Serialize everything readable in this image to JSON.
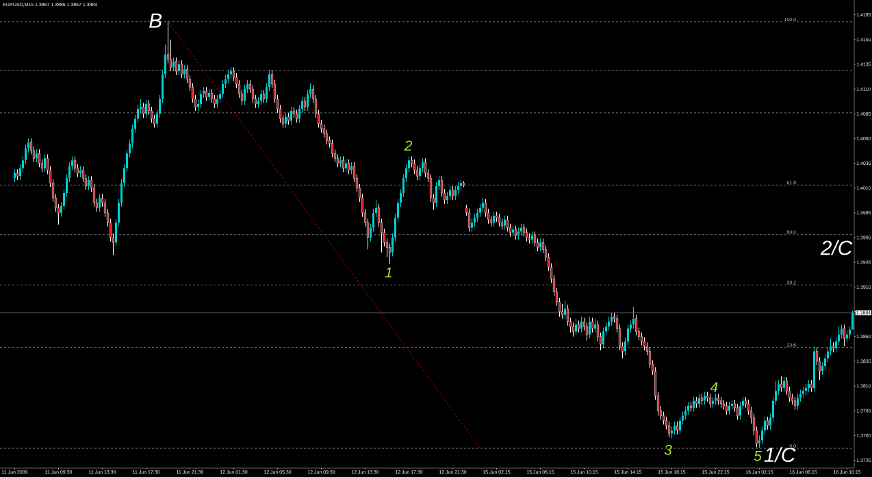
{
  "chart_data": {
    "type": "candlestick",
    "title": "EURUSD,M15  1.3867 1.3886 1.3867 1.3884",
    "categories": [
      "11 Jun 2009",
      null,
      null,
      null,
      null,
      null,
      null,
      null,
      null,
      null,
      null,
      null,
      null,
      null,
      null,
      null,
      "11 Jun 09:30",
      null,
      null,
      null,
      null,
      null,
      null,
      null,
      null,
      null,
      null,
      null,
      null,
      null,
      null,
      null,
      "11 Jun 13:30",
      null,
      null,
      null,
      null,
      null,
      null,
      null,
      null,
      null,
      null,
      null,
      null,
      null,
      null,
      null,
      "11 Jun 17:30",
      null,
      null,
      null,
      null,
      null,
      null,
      null,
      null,
      null,
      null,
      null,
      null,
      null,
      null,
      null,
      "11 Jun 21:30",
      null,
      null,
      null,
      null,
      null,
      null,
      null,
      null,
      null,
      null,
      null,
      null,
      null,
      null,
      null,
      "12 Jun 01:30",
      null,
      null,
      null,
      null,
      null,
      null,
      null,
      null,
      null,
      null,
      null,
      null,
      null,
      null,
      null,
      "12 Jun 05:30",
      null,
      null,
      null,
      null,
      null,
      null,
      null,
      null,
      null,
      null,
      null,
      null,
      null,
      null,
      null,
      "12 Jun 09:30",
      null,
      null,
      null,
      null,
      null,
      null,
      null,
      null,
      null,
      null,
      null,
      null,
      null,
      null,
      null,
      "12 Jun 13:30",
      null,
      null,
      null,
      null,
      null,
      null,
      null,
      null,
      null,
      null,
      null,
      null,
      null,
      null,
      null,
      "12 Jun 17:30",
      null,
      null,
      null,
      null,
      null,
      null,
      null,
      null,
      null,
      null,
      null,
      null,
      null,
      null,
      null,
      "12 Jun 21:30",
      null,
      null,
      null,
      null,
      null,
      null,
      null,
      null,
      null,
      null,
      null,
      null,
      null,
      null,
      null,
      "15 Jun 02:15",
      null,
      null,
      null,
      null,
      null,
      null,
      null,
      null,
      null,
      null,
      null,
      null,
      null,
      null,
      null,
      "15 Jun 06:15",
      null,
      null,
      null,
      null,
      null,
      null,
      null,
      null,
      null,
      null,
      null,
      null,
      null,
      null,
      null,
      "15 Jun 10:15",
      null,
      null,
      null,
      null,
      null,
      null,
      null,
      null,
      null,
      null,
      null,
      null,
      null,
      null,
      null,
      "15 Jun 14:15",
      null,
      null,
      null,
      null,
      null,
      null,
      null,
      null,
      null,
      null,
      null,
      null,
      null,
      null,
      null,
      "15 Jun 18:15",
      null,
      null,
      null,
      null,
      null,
      null,
      null,
      null,
      null,
      null,
      null,
      null,
      null,
      null,
      null,
      "15 Jun 22:15",
      null,
      null,
      null,
      null,
      null,
      null,
      null,
      null,
      null,
      null,
      null,
      null,
      null,
      null,
      null,
      "16 Jun 02:15",
      null,
      null,
      null,
      null,
      null,
      null,
      null,
      null,
      null,
      null,
      null,
      null,
      null,
      null,
      null,
      "16 Jun 06:15",
      null,
      null,
      null,
      null,
      null,
      null,
      null,
      null,
      null,
      null,
      null,
      null,
      null,
      null,
      null,
      "16 Jun 10:15",
      null,
      null
    ],
    "ohlc": [
      [
        1.402,
        1.4029,
        1.4016,
        1.4025
      ],
      [
        1.4025,
        1.4029,
        1.4018,
        1.4022
      ],
      [
        1.4022,
        1.4034,
        1.4018,
        1.403
      ],
      [
        1.403,
        1.4042,
        1.4026,
        1.4038
      ],
      [
        1.4038,
        1.4054,
        1.4034,
        1.405
      ],
      [
        1.405,
        1.406,
        1.4046,
        1.4056
      ],
      [
        1.4056,
        1.406,
        1.4044,
        1.4048
      ],
      [
        1.4048,
        1.4052,
        1.4036,
        1.404
      ],
      [
        1.404,
        1.4049,
        1.4036,
        1.4045
      ],
      [
        1.4045,
        1.4049,
        1.4031,
        1.4035
      ],
      [
        1.4035,
        1.4039,
        1.4026,
        1.403
      ],
      [
        1.403,
        1.4044,
        1.4026,
        1.404
      ],
      [
        1.404,
        1.4044,
        1.4024,
        1.4028
      ],
      [
        1.4028,
        1.4032,
        1.4011,
        1.4015
      ],
      [
        1.4015,
        1.4019,
        1.3996,
        1.4
      ],
      [
        1.4,
        1.4004,
        1.3986,
        1.399
      ],
      [
        1.399,
        1.3994,
        1.3973,
        1.3985
      ],
      [
        1.3985,
        1.3996,
        1.3981,
        1.3992
      ],
      [
        1.3992,
        1.4009,
        1.3988,
        1.4005
      ],
      [
        1.4005,
        1.4024,
        1.4001,
        1.402
      ],
      [
        1.402,
        1.4036,
        1.4016,
        1.4032
      ],
      [
        1.4032,
        1.4042,
        1.4028,
        1.4038
      ],
      [
        1.4038,
        1.4042,
        1.4026,
        1.403
      ],
      [
        1.403,
        1.4034,
        1.4021,
        1.4025
      ],
      [
        1.4025,
        1.4032,
        1.4021,
        1.4028
      ],
      [
        1.4028,
        1.4032,
        1.4016,
        1.402
      ],
      [
        1.402,
        1.4024,
        1.4008,
        1.4012
      ],
      [
        1.4012,
        1.4022,
        1.4008,
        1.4018
      ],
      [
        1.4018,
        1.4022,
        1.4006,
        1.401
      ],
      [
        1.401,
        1.4014,
        1.3991,
        1.3995
      ],
      [
        1.3995,
        1.3999,
        1.3986,
        1.399
      ],
      [
        1.399,
        1.4004,
        1.3986,
        1.4
      ],
      [
        1.4,
        1.4004,
        1.3991,
        1.3995
      ],
      [
        1.3995,
        1.3999,
        1.3981,
        1.3985
      ],
      [
        1.3985,
        1.3989,
        1.3971,
        1.3975
      ],
      [
        1.3975,
        1.3979,
        1.3956,
        1.396
      ],
      [
        1.396,
        1.3964,
        1.3942,
        1.3955
      ],
      [
        1.3955,
        1.3979,
        1.3951,
        1.3975
      ],
      [
        1.3975,
        1.3999,
        1.3971,
        1.3995
      ],
      [
        1.3995,
        1.4019,
        1.3991,
        1.4015
      ],
      [
        1.4015,
        1.4034,
        1.4011,
        1.403
      ],
      [
        1.403,
        1.4049,
        1.4026,
        1.4045
      ],
      [
        1.4045,
        1.4059,
        1.4041,
        1.4055
      ],
      [
        1.4055,
        1.4074,
        1.4051,
        1.407
      ],
      [
        1.407,
        1.4084,
        1.4066,
        1.408
      ],
      [
        1.408,
        1.4094,
        1.4076,
        1.409
      ],
      [
        1.409,
        1.41,
        1.4086,
        1.4092
      ],
      [
        1.4092,
        1.4096,
        1.4081,
        1.4085
      ],
      [
        1.4085,
        1.4099,
        1.4081,
        1.4095
      ],
      [
        1.4095,
        1.4099,
        1.4084,
        1.4088
      ],
      [
        1.4088,
        1.4092,
        1.4076,
        1.408
      ],
      [
        1.408,
        1.4084,
        1.4071,
        1.4075
      ],
      [
        1.4075,
        1.4089,
        1.4071,
        1.4085
      ],
      [
        1.4085,
        1.4104,
        1.4081,
        1.41
      ],
      [
        1.41,
        1.4129,
        1.4096,
        1.4125
      ],
      [
        1.4125,
        1.4155,
        1.4121,
        1.4145
      ],
      [
        1.4145,
        1.4178,
        1.4136,
        1.414
      ],
      [
        1.414,
        1.416,
        1.4128,
        1.4132
      ],
      [
        1.4132,
        1.4142,
        1.4128,
        1.4138
      ],
      [
        1.4138,
        1.4142,
        1.4124,
        1.4128
      ],
      [
        1.4128,
        1.4139,
        1.4124,
        1.4135
      ],
      [
        1.4135,
        1.4139,
        1.4121,
        1.4125
      ],
      [
        1.4125,
        1.4134,
        1.4121,
        1.413
      ],
      [
        1.413,
        1.4134,
        1.4116,
        1.412
      ],
      [
        1.412,
        1.4124,
        1.4108,
        1.4112
      ],
      [
        1.4112,
        1.4116,
        1.4096,
        1.41
      ],
      [
        1.41,
        1.4104,
        1.4088,
        1.4092
      ],
      [
        1.4092,
        1.4099,
        1.4088,
        1.4095
      ],
      [
        1.4095,
        1.4109,
        1.4091,
        1.4105
      ],
      [
        1.4105,
        1.4112,
        1.4101,
        1.4108
      ],
      [
        1.4108,
        1.4112,
        1.4098,
        1.4102
      ],
      [
        1.4102,
        1.411,
        1.4098,
        1.4106
      ],
      [
        1.4106,
        1.411,
        1.4096,
        1.41
      ],
      [
        1.41,
        1.4104,
        1.4091,
        1.4095
      ],
      [
        1.4095,
        1.4104,
        1.4091,
        1.41
      ],
      [
        1.41,
        1.4109,
        1.4096,
        1.4105
      ],
      [
        1.4105,
        1.4119,
        1.4101,
        1.4115
      ],
      [
        1.4115,
        1.4124,
        1.4111,
        1.412
      ],
      [
        1.412,
        1.4129,
        1.4116,
        1.4125
      ],
      [
        1.4125,
        1.4132,
        1.4121,
        1.4128
      ],
      [
        1.4128,
        1.4132,
        1.4118,
        1.4122
      ],
      [
        1.4122,
        1.4126,
        1.4111,
        1.4115
      ],
      [
        1.4115,
        1.4119,
        1.4101,
        1.4105
      ],
      [
        1.4105,
        1.4109,
        1.4094,
        1.4098
      ],
      [
        1.4098,
        1.4114,
        1.4094,
        1.411
      ],
      [
        1.411,
        1.4119,
        1.4106,
        1.4115
      ],
      [
        1.4115,
        1.4119,
        1.4106,
        1.411
      ],
      [
        1.411,
        1.4114,
        1.4096,
        1.41
      ],
      [
        1.41,
        1.4104,
        1.4091,
        1.4095
      ],
      [
        1.4095,
        1.4102,
        1.4091,
        1.4098
      ],
      [
        1.4098,
        1.4109,
        1.4094,
        1.4105
      ],
      [
        1.4105,
        1.4109,
        1.4096,
        1.41
      ],
      [
        1.41,
        1.4116,
        1.4096,
        1.4112
      ],
      [
        1.4112,
        1.4129,
        1.4108,
        1.4125
      ],
      [
        1.4125,
        1.4129,
        1.4111,
        1.4115
      ],
      [
        1.4115,
        1.4119,
        1.4096,
        1.41
      ],
      [
        1.41,
        1.4104,
        1.4086,
        1.409
      ],
      [
        1.409,
        1.4094,
        1.4076,
        1.408
      ],
      [
        1.408,
        1.4084,
        1.4071,
        1.4075
      ],
      [
        1.4075,
        1.4086,
        1.4071,
        1.4082
      ],
      [
        1.4082,
        1.4086,
        1.4074,
        1.4078
      ],
      [
        1.4078,
        1.4092,
        1.4074,
        1.4088
      ],
      [
        1.4088,
        1.4092,
        1.4081,
        1.4085
      ],
      [
        1.4085,
        1.4089,
        1.4076,
        1.408
      ],
      [
        1.408,
        1.4094,
        1.4076,
        1.409
      ],
      [
        1.409,
        1.4102,
        1.4086,
        1.4098
      ],
      [
        1.4098,
        1.4102,
        1.4088,
        1.4092
      ],
      [
        1.4092,
        1.4109,
        1.4088,
        1.4105
      ],
      [
        1.4105,
        1.4116,
        1.4101,
        1.411
      ],
      [
        1.411,
        1.4114,
        1.4096,
        1.41
      ],
      [
        1.41,
        1.4104,
        1.4081,
        1.4085
      ],
      [
        1.4085,
        1.4089,
        1.4071,
        1.4075
      ],
      [
        1.4075,
        1.4079,
        1.4066,
        1.407
      ],
      [
        1.407,
        1.4074,
        1.4061,
        1.4065
      ],
      [
        1.4065,
        1.4069,
        1.4054,
        1.4058
      ],
      [
        1.4058,
        1.4062,
        1.4051,
        1.4055
      ],
      [
        1.4055,
        1.4059,
        1.4041,
        1.4045
      ],
      [
        1.4045,
        1.4049,
        1.4036,
        1.404
      ],
      [
        1.404,
        1.4044,
        1.4031,
        1.4035
      ],
      [
        1.4035,
        1.4042,
        1.4031,
        1.4038
      ],
      [
        1.4038,
        1.4042,
        1.4026,
        1.403
      ],
      [
        1.403,
        1.4039,
        1.4026,
        1.4035
      ],
      [
        1.4035,
        1.4039,
        1.4024,
        1.4028
      ],
      [
        1.4028,
        1.4036,
        1.4024,
        1.4032
      ],
      [
        1.4032,
        1.4036,
        1.4016,
        1.402
      ],
      [
        1.402,
        1.4024,
        1.4006,
        1.401
      ],
      [
        1.401,
        1.4014,
        1.3996,
        1.4
      ],
      [
        1.4,
        1.4004,
        1.3981,
        1.3985
      ],
      [
        1.3985,
        1.3989,
        1.3971,
        1.3975
      ],
      [
        1.3975,
        1.3979,
        1.3948,
        1.396
      ],
      [
        1.396,
        1.3974,
        1.3956,
        1.397
      ],
      [
        1.397,
        1.3989,
        1.3966,
        1.3985
      ],
      [
        1.3985,
        1.3998,
        1.3981,
        1.399
      ],
      [
        1.399,
        1.3994,
        1.3971,
        1.3975
      ],
      [
        1.3975,
        1.3979,
        1.3945,
        1.3965
      ],
      [
        1.3965,
        1.3969,
        1.3951,
        1.3955
      ],
      [
        1.3955,
        1.3959,
        1.394,
        1.395
      ],
      [
        1.395,
        1.3954,
        1.3933,
        1.3945
      ],
      [
        1.3945,
        1.3964,
        1.3941,
        1.396
      ],
      [
        1.396,
        1.3984,
        1.3956,
        1.398
      ],
      [
        1.398,
        1.3999,
        1.3976,
        1.3995
      ],
      [
        1.3995,
        1.4009,
        1.3991,
        1.4005
      ],
      [
        1.4005,
        1.4024,
        1.4001,
        1.402
      ],
      [
        1.402,
        1.4034,
        1.4016,
        1.403
      ],
      [
        1.403,
        1.4042,
        1.4026,
        1.4038
      ],
      [
        1.4038,
        1.4042,
        1.4031,
        1.4035
      ],
      [
        1.4035,
        1.4039,
        1.4024,
        1.4028
      ],
      [
        1.4028,
        1.4032,
        1.4018,
        1.4022
      ],
      [
        1.4022,
        1.4034,
        1.4018,
        1.403
      ],
      [
        1.403,
        1.404,
        1.4026,
        1.4036
      ],
      [
        1.4036,
        1.404,
        1.4021,
        1.4025
      ],
      [
        1.4025,
        1.4029,
        1.4016,
        1.402
      ],
      [
        1.402,
        1.4024,
        1.3996,
        1.4
      ],
      [
        1.4,
        1.4004,
        1.3988,
        1.3995
      ],
      [
        1.3995,
        1.4016,
        1.3991,
        1.4012
      ],
      [
        1.4012,
        1.4022,
        1.4008,
        1.4018
      ],
      [
        1.4018,
        1.4022,
        1.4001,
        1.4005
      ],
      [
        1.4005,
        1.4009,
        1.3994,
        1.3998
      ],
      [
        1.3998,
        1.4006,
        1.3994,
        1.4002
      ],
      [
        1.4002,
        1.4012,
        1.3998,
        1.4008
      ],
      [
        1.4008,
        1.4012,
        1.3998,
        1.4002
      ],
      [
        1.4002,
        1.4012,
        1.3998,
        1.4008
      ],
      [
        1.4008,
        1.4016,
        1.4004,
        1.4012
      ],
      [
        1.4012,
        1.4018,
        1.4008,
        1.4015
      ],
      [
        1.4015,
        1.4017,
        1.4011,
        1.4013
      ],
      [
        1.399,
        1.3993,
        1.3982,
        1.3985
      ],
      [
        1.3985,
        1.3989,
        1.3966,
        1.397
      ],
      [
        1.397,
        1.3979,
        1.3966,
        1.3975
      ],
      [
        1.3975,
        1.3984,
        1.3971,
        1.398
      ],
      [
        1.398,
        1.3989,
        1.3976,
        1.3985
      ],
      [
        1.3985,
        1.3994,
        1.3981,
        1.399
      ],
      [
        1.399,
        1.4,
        1.3986,
        1.3995
      ],
      [
        1.3995,
        1.3999,
        1.3981,
        1.3985
      ],
      [
        1.3985,
        1.3989,
        1.3974,
        1.3978
      ],
      [
        1.3978,
        1.3982,
        1.3971,
        1.3975
      ],
      [
        1.3975,
        1.3986,
        1.3971,
        1.3982
      ],
      [
        1.3982,
        1.3986,
        1.3976,
        1.398
      ],
      [
        1.398,
        1.3984,
        1.3971,
        1.3975
      ],
      [
        1.3975,
        1.3979,
        1.3968,
        1.3972
      ],
      [
        1.3972,
        1.3982,
        1.3968,
        1.3978
      ],
      [
        1.3978,
        1.3982,
        1.3966,
        1.397
      ],
      [
        1.397,
        1.3974,
        1.3961,
        1.3965
      ],
      [
        1.3965,
        1.3972,
        1.3961,
        1.3968
      ],
      [
        1.3968,
        1.3972,
        1.3958,
        1.3962
      ],
      [
        1.3962,
        1.397,
        1.3958,
        1.3966
      ],
      [
        1.3966,
        1.3974,
        1.3962,
        1.397
      ],
      [
        1.397,
        1.3974,
        1.3961,
        1.3965
      ],
      [
        1.3965,
        1.3969,
        1.3956,
        1.396
      ],
      [
        1.396,
        1.3964,
        1.3954,
        1.3958
      ],
      [
        1.3958,
        1.3966,
        1.3954,
        1.3962
      ],
      [
        1.3962,
        1.3966,
        1.3951,
        1.3955
      ],
      [
        1.3955,
        1.3959,
        1.3946,
        1.395
      ],
      [
        1.395,
        1.3959,
        1.3946,
        1.3955
      ],
      [
        1.3955,
        1.3959,
        1.3944,
        1.3948
      ],
      [
        1.3948,
        1.3952,
        1.3936,
        1.394
      ],
      [
        1.394,
        1.3944,
        1.3926,
        1.393
      ],
      [
        1.393,
        1.3934,
        1.3914,
        1.3918
      ],
      [
        1.3918,
        1.3922,
        1.3901,
        1.3905
      ],
      [
        1.3905,
        1.3909,
        1.3891,
        1.3895
      ],
      [
        1.3895,
        1.3899,
        1.388,
        1.3885
      ],
      [
        1.3885,
        1.3893,
        1.3878,
        1.3882
      ],
      [
        1.3882,
        1.3896,
        1.3878,
        1.3888
      ],
      [
        1.3888,
        1.3892,
        1.3871,
        1.3875
      ],
      [
        1.3875,
        1.3879,
        1.3864,
        1.387
      ],
      [
        1.387,
        1.3874,
        1.386,
        1.3865
      ],
      [
        1.3865,
        1.3878,
        1.3861,
        1.3872
      ],
      [
        1.3872,
        1.3876,
        1.3864,
        1.3868
      ],
      [
        1.3868,
        1.388,
        1.3864,
        1.3875
      ],
      [
        1.3875,
        1.3879,
        1.3866,
        1.387
      ],
      [
        1.387,
        1.3874,
        1.3856,
        1.3862
      ],
      [
        1.3862,
        1.388,
        1.3858,
        1.3875
      ],
      [
        1.3875,
        1.3879,
        1.3864,
        1.3868
      ],
      [
        1.3868,
        1.3878,
        1.3864,
        1.3872
      ],
      [
        1.3872,
        1.3876,
        1.3855,
        1.386
      ],
      [
        1.386,
        1.3864,
        1.3846,
        1.3852
      ],
      [
        1.3852,
        1.3869,
        1.3848,
        1.3865
      ],
      [
        1.3865,
        1.3874,
        1.3861,
        1.387
      ],
      [
        1.387,
        1.388,
        1.3866,
        1.3875
      ],
      [
        1.3875,
        1.3884,
        1.3871,
        1.388
      ],
      [
        1.388,
        1.3884,
        1.3874,
        1.3878
      ],
      [
        1.3878,
        1.3882,
        1.3864,
        1.3868
      ],
      [
        1.3868,
        1.3872,
        1.3846,
        1.385
      ],
      [
        1.385,
        1.3854,
        1.3838,
        1.3845
      ],
      [
        1.3845,
        1.3859,
        1.3841,
        1.3855
      ],
      [
        1.3855,
        1.3872,
        1.3851,
        1.3868
      ],
      [
        1.3868,
        1.3876,
        1.3864,
        1.3872
      ],
      [
        1.3872,
        1.389,
        1.3868,
        1.3878
      ],
      [
        1.3878,
        1.3882,
        1.3861,
        1.3865
      ],
      [
        1.3865,
        1.3869,
        1.3856,
        1.386
      ],
      [
        1.386,
        1.3864,
        1.3851,
        1.3855
      ],
      [
        1.3855,
        1.3859,
        1.3846,
        1.385
      ],
      [
        1.385,
        1.3854,
        1.3841,
        1.3845
      ],
      [
        1.3845,
        1.3849,
        1.3828,
        1.3832
      ],
      [
        1.3832,
        1.3836,
        1.3821,
        1.3825
      ],
      [
        1.3825,
        1.3829,
        1.3796,
        1.38
      ],
      [
        1.38,
        1.3804,
        1.378,
        1.3785
      ],
      [
        1.3785,
        1.379,
        1.3776,
        1.378
      ],
      [
        1.378,
        1.3784,
        1.3771,
        1.3775
      ],
      [
        1.3775,
        1.3779,
        1.3766,
        1.377
      ],
      [
        1.377,
        1.3774,
        1.3758,
        1.3762
      ],
      [
        1.3762,
        1.3769,
        1.3757,
        1.3765
      ],
      [
        1.3765,
        1.3774,
        1.3761,
        1.377
      ],
      [
        1.377,
        1.3774,
        1.3761,
        1.3765
      ],
      [
        1.3765,
        1.3779,
        1.3761,
        1.3775
      ],
      [
        1.3775,
        1.3784,
        1.3771,
        1.378
      ],
      [
        1.378,
        1.3789,
        1.3776,
        1.3785
      ],
      [
        1.3785,
        1.3794,
        1.3781,
        1.379
      ],
      [
        1.379,
        1.3794,
        1.3784,
        1.3788
      ],
      [
        1.3788,
        1.3799,
        1.3784,
        1.3795
      ],
      [
        1.3795,
        1.3799,
        1.3788,
        1.3792
      ],
      [
        1.3792,
        1.3802,
        1.3788,
        1.3798
      ],
      [
        1.3798,
        1.3802,
        1.3791,
        1.3795
      ],
      [
        1.3795,
        1.3804,
        1.3791,
        1.38
      ],
      [
        1.38,
        1.3804,
        1.3794,
        1.3798
      ],
      [
        1.3798,
        1.3802,
        1.3788,
        1.3792
      ],
      [
        1.3792,
        1.3799,
        1.3788,
        1.3795
      ],
      [
        1.3795,
        1.3802,
        1.3791,
        1.3798
      ],
      [
        1.3798,
        1.3802,
        1.3791,
        1.3795
      ],
      [
        1.3795,
        1.3799,
        1.3788,
        1.3792
      ],
      [
        1.3792,
        1.3796,
        1.3786,
        1.379
      ],
      [
        1.379,
        1.3794,
        1.3781,
        1.3785
      ],
      [
        1.3785,
        1.3794,
        1.3781,
        1.379
      ],
      [
        1.379,
        1.3796,
        1.3786,
        1.3792
      ],
      [
        1.3792,
        1.3796,
        1.3784,
        1.3788
      ],
      [
        1.3788,
        1.3792,
        1.3776,
        1.378
      ],
      [
        1.378,
        1.3794,
        1.3776,
        1.379
      ],
      [
        1.379,
        1.3799,
        1.3786,
        1.3795
      ],
      [
        1.3795,
        1.3799,
        1.3788,
        1.3792
      ],
      [
        1.3792,
        1.3796,
        1.3781,
        1.3785
      ],
      [
        1.3785,
        1.3789,
        1.3772,
        1.3778
      ],
      [
        1.3778,
        1.3782,
        1.376,
        1.3765
      ],
      [
        1.3765,
        1.3769,
        1.3748,
        1.3752
      ],
      [
        1.3752,
        1.376,
        1.3747,
        1.3755
      ],
      [
        1.3755,
        1.3769,
        1.3751,
        1.3765
      ],
      [
        1.3765,
        1.3779,
        1.3761,
        1.3775
      ],
      [
        1.3775,
        1.3779,
        1.3766,
        1.377
      ],
      [
        1.377,
        1.3782,
        1.3766,
        1.3778
      ],
      [
        1.3778,
        1.3799,
        1.3774,
        1.3795
      ],
      [
        1.3795,
        1.3815,
        1.3791,
        1.3805
      ],
      [
        1.3805,
        1.3816,
        1.3801,
        1.3812
      ],
      [
        1.3812,
        1.382,
        1.3804,
        1.3808
      ],
      [
        1.3808,
        1.3819,
        1.3804,
        1.3815
      ],
      [
        1.3815,
        1.3819,
        1.3801,
        1.3805
      ],
      [
        1.3805,
        1.3809,
        1.3794,
        1.3798
      ],
      [
        1.3798,
        1.3802,
        1.3791,
        1.3795
      ],
      [
        1.3795,
        1.3799,
        1.3786,
        1.379
      ],
      [
        1.379,
        1.3802,
        1.3786,
        1.3798
      ],
      [
        1.3798,
        1.3806,
        1.3794,
        1.3802
      ],
      [
        1.3802,
        1.3809,
        1.3798,
        1.3805
      ],
      [
        1.3805,
        1.3812,
        1.3801,
        1.3808
      ],
      [
        1.3808,
        1.3816,
        1.3804,
        1.3812
      ],
      [
        1.3812,
        1.3816,
        1.3804,
        1.3808
      ],
      [
        1.3808,
        1.385,
        1.3804,
        1.3845
      ],
      [
        1.3845,
        1.3849,
        1.3831,
        1.3835
      ],
      [
        1.3835,
        1.3839,
        1.3816,
        1.3825
      ],
      [
        1.3825,
        1.3834,
        1.3821,
        1.383
      ],
      [
        1.383,
        1.3842,
        1.3826,
        1.3838
      ],
      [
        1.3838,
        1.3849,
        1.3834,
        1.3845
      ],
      [
        1.3845,
        1.3858,
        1.3841,
        1.385
      ],
      [
        1.385,
        1.3854,
        1.3844,
        1.3848
      ],
      [
        1.3848,
        1.3859,
        1.3844,
        1.3855
      ],
      [
        1.3855,
        1.387,
        1.3851,
        1.3862
      ],
      [
        1.3862,
        1.3872,
        1.3858,
        1.3868
      ],
      [
        1.3868,
        1.3872,
        1.385,
        1.3858
      ],
      [
        1.3858,
        1.3866,
        1.3854,
        1.3862
      ],
      [
        1.3862,
        1.387,
        1.3858,
        1.3867
      ],
      [
        1.3867,
        1.3886,
        1.3867,
        1.3884
      ]
    ],
    "series": [
      {
        "type": "line",
        "color": "#ff0000",
        "line_style": "dashed",
        "values": [
          null,
          null,
          null,
          null,
          null,
          null,
          null,
          null,
          null,
          null,
          null,
          null,
          null,
          null,
          null,
          null,
          null,
          null,
          null,
          null,
          null,
          null,
          null,
          null,
          null,
          null,
          null,
          null,
          null,
          null,
          null,
          null,
          null,
          null,
          null,
          null,
          null,
          null,
          null,
          null,
          null,
          null,
          null,
          null,
          null,
          null,
          null,
          null,
          null,
          null,
          null,
          null,
          null,
          null,
          null,
          null,
          1.4178,
          null,
          null,
          null,
          null,
          null,
          null,
          null,
          null,
          null,
          null,
          null,
          null,
          null,
          null,
          null,
          null,
          null,
          null,
          null,
          null,
          null,
          null,
          null,
          null,
          null,
          null,
          null,
          null,
          null,
          null,
          null,
          null,
          null,
          null,
          null,
          null,
          null,
          null,
          null,
          null,
          null,
          null,
          null,
          null,
          null,
          null,
          null,
          null,
          null,
          null,
          null,
          null,
          null,
          null,
          null,
          null,
          null,
          null,
          null,
          null,
          null,
          null,
          null,
          null,
          null,
          null,
          null,
          null,
          null,
          null,
          null,
          null,
          null,
          null,
          null,
          null,
          null,
          null,
          null,
          null,
          null,
          null,
          null,
          null,
          null,
          null,
          null,
          null,
          null,
          null,
          null,
          null,
          null,
          null,
          null,
          null,
          null,
          null,
          null,
          null,
          null,
          null,
          null,
          null,
          null,
          null,
          null,
          null,
          null,
          null,
          null,
          null,
          null,
          1.3747,
          null,
          null,
          null,
          null,
          null,
          null,
          null,
          null,
          null,
          null,
          null,
          null,
          null,
          null,
          null,
          null,
          null,
          null,
          null,
          null,
          null,
          null,
          null,
          null,
          null,
          null,
          null,
          null,
          null,
          null,
          null,
          null,
          null,
          null,
          null,
          null,
          null,
          null,
          null,
          null,
          null,
          null,
          null,
          null,
          null,
          null,
          null,
          null,
          null,
          null,
          null,
          null,
          null,
          null,
          null,
          null,
          null,
          null,
          null,
          null,
          null,
          null,
          null,
          null,
          null,
          null,
          null,
          null,
          null,
          null,
          null,
          null,
          null,
          null,
          null,
          null,
          null,
          null,
          null,
          null,
          null,
          null,
          null,
          null,
          null,
          null,
          null,
          null,
          null,
          null,
          null,
          null,
          null,
          null,
          null,
          null,
          null,
          null,
          null,
          null,
          null,
          null,
          null,
          null,
          null,
          null,
          null,
          null,
          null,
          null,
          null,
          null,
          null,
          null,
          null,
          null,
          null,
          null,
          null,
          null,
          null,
          null,
          null,
          null,
          null,
          null,
          null,
          null,
          null,
          null,
          null,
          null,
          null,
          null,
          null,
          null
        ]
      }
    ],
    "ylim": [
      1.3727,
      1.42
    ],
    "yticks": [
      1.3735,
      {
        "value": 1.376,
        "label": "1.3760"
      },
      1.3785,
      {
        "value": 1.381,
        "label": "1.3810"
      },
      1.3835,
      {
        "value": 1.386,
        "label": "1.3860"
      },
      {
        "value": 1.3885,
        "label": null
      },
      {
        "value": 1.391,
        "label": "1.3910"
      },
      1.3935,
      {
        "value": 1.396,
        "label": "1.3960"
      },
      1.3985,
      {
        "value": 1.401,
        "label": "1.4010"
      },
      1.4035,
      {
        "value": 1.406,
        "label": "1.4060"
      },
      1.4085,
      {
        "value": 1.411,
        "label": "1.4110"
      },
      1.4135,
      {
        "value": 1.416,
        "label": "1.4160"
      },
      1.4185
    ],
    "ref_lines": [
      {
        "axis": "y",
        "value": 1.4178,
        "color": "#c8c8c8",
        "line_style": "dashed"
      },
      {
        "axis": "y",
        "value": 1.4129,
        "color": "#c8c8c8",
        "line_style": "dashed"
      },
      {
        "axis": "y",
        "value": 1.4086,
        "color": "#c8c8c8",
        "line_style": "dashed"
      },
      {
        "axis": "y",
        "value": 1.4013,
        "color": "#c8c8c8",
        "line_style": "dashed"
      },
      {
        "axis": "y",
        "value": 1.3963,
        "color": "#c8c8c8",
        "line_style": "dashed"
      },
      {
        "axis": "y",
        "value": 1.3912,
        "color": "#c8c8c8",
        "line_style": "dashed"
      },
      {
        "axis": "y",
        "value": 1.3849,
        "color": "#c8c8c8",
        "line_style": "dashed"
      },
      {
        "axis": "y",
        "value": 1.3747,
        "color": "#c8c8c8",
        "line_style": "dashed"
      },
      {
        "axis": "y",
        "value": 1.3884,
        "label": "1.3884",
        "color": "#8a9bb0",
        "line_style": "solid"
      }
    ],
    "annotations": [
      "B",
      "1",
      "2",
      "3",
      "4",
      "5",
      "1/C",
      "2/C",
      {
        "text": "100.0",
        "y": 1.4178
      },
      {
        "text": "61.8",
        "y": 1.4013
      },
      {
        "text": "50.0",
        "y": 1.3963
      },
      {
        "text": "38.2",
        "y": 1.3912
      },
      {
        "text": "23.6",
        "y": 1.3849
      },
      {
        "text": "0.0",
        "y": 1.3747
      }
    ]
  }
}
